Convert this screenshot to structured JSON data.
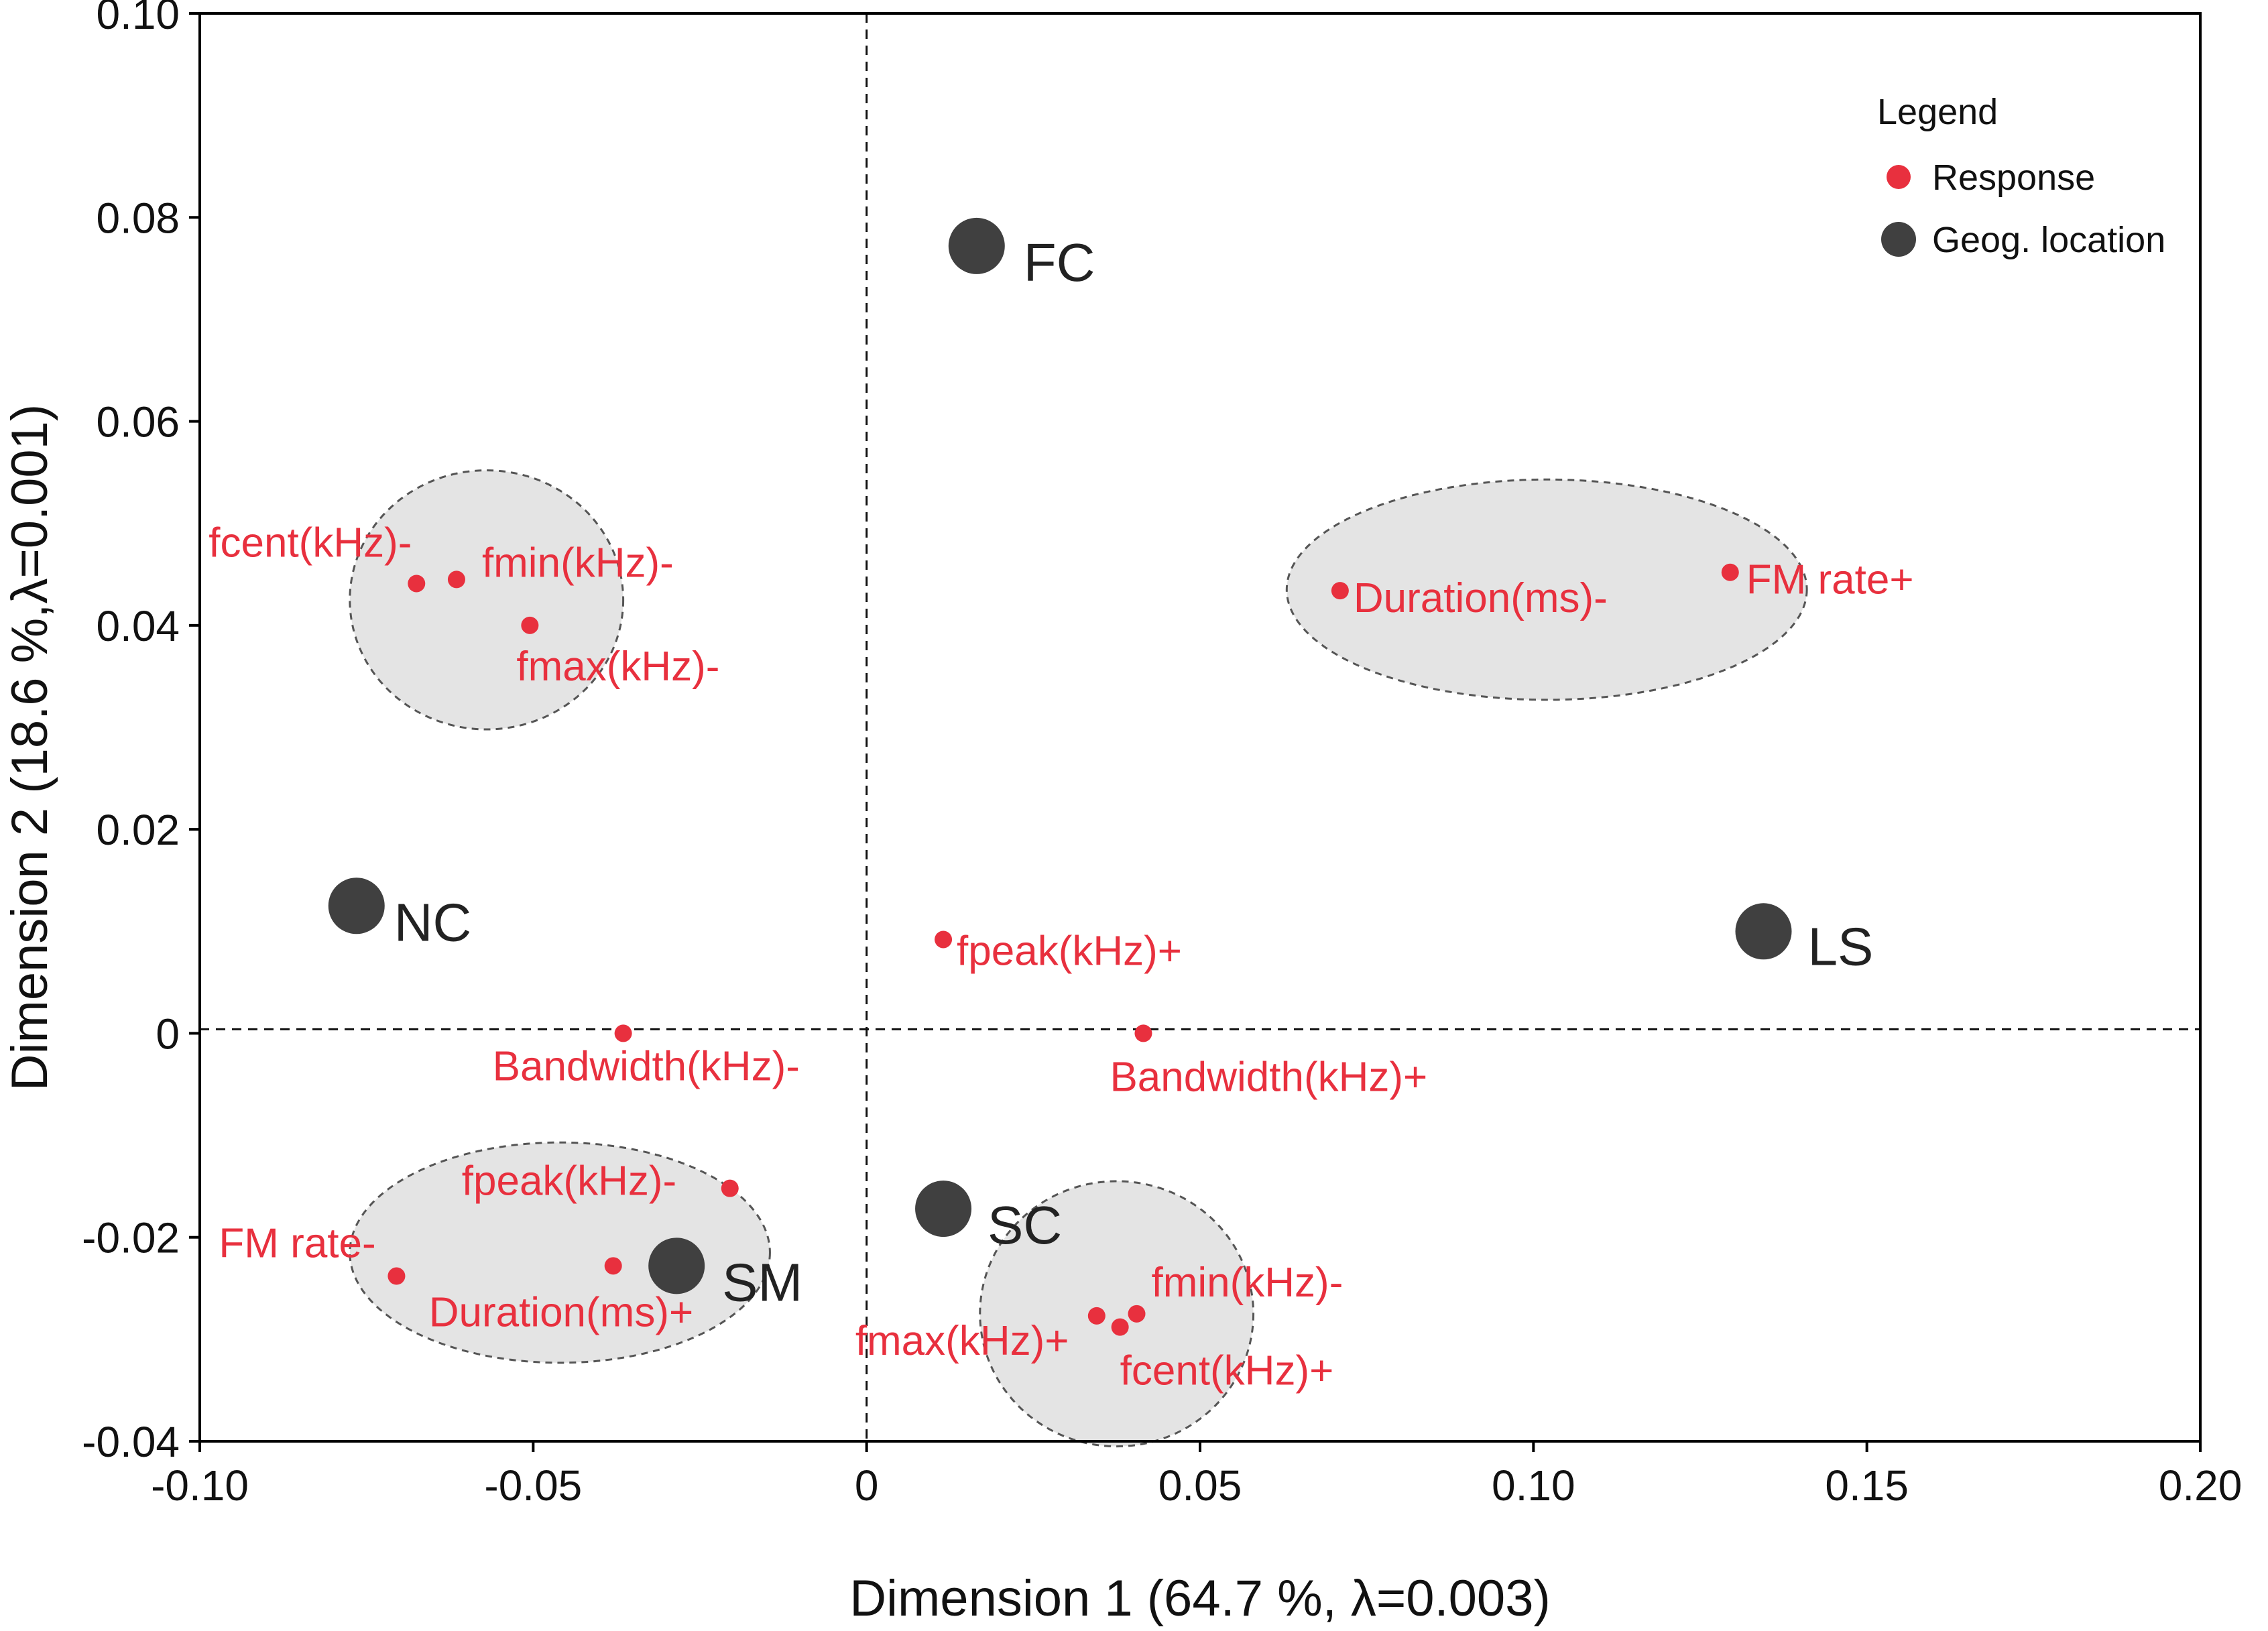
{
  "chart_data": {
    "type": "scatter",
    "title": "",
    "xlabel": "Dimension 1  (64.7 %, λ=0.003)",
    "ylabel": "Dimension 2  (18.6 %,λ=0.001)",
    "xlim": [
      -0.1,
      0.2
    ],
    "ylim": [
      -0.04,
      0.1
    ],
    "xticks": [
      {
        "value": -0.1,
        "label": "-0.10"
      },
      {
        "value": -0.05,
        "label": "-0.05"
      },
      {
        "value": 0,
        "label": "0"
      },
      {
        "value": 0.05,
        "label": "0.05"
      },
      {
        "value": 0.1,
        "label": "0.10"
      },
      {
        "value": 0.15,
        "label": "0.15"
      },
      {
        "value": 0.2,
        "label": "0.20"
      }
    ],
    "yticks": [
      {
        "value": 0.1,
        "label": "0.10"
      },
      {
        "value": 0.08,
        "label": "0.08"
      },
      {
        "value": 0.06,
        "label": "0.06"
      },
      {
        "value": 0.04,
        "label": "0.04"
      },
      {
        "value": 0.02,
        "label": "0.02"
      },
      {
        "value": 0,
        "label": "0"
      },
      {
        "value": -0.02,
        "label": "-0.02"
      },
      {
        "value": -0.04,
        "label": "-0.04"
      }
    ],
    "reference_lines": {
      "x": 0,
      "y": 0
    },
    "legend": {
      "title": "Legend",
      "position": "top-right",
      "entries": [
        {
          "label": "Response",
          "series": "Response"
        },
        {
          "label": "Geog. location",
          "series": "Geog. location"
        }
      ]
    },
    "series": [
      {
        "name": "Response",
        "color": "#e8303e",
        "points": [
          {
            "label": "fcent(kHz)-",
            "x": -0.0675,
            "y": 0.0441
          },
          {
            "label": "fmin(kHz)-",
            "x": -0.0615,
            "y": 0.0445
          },
          {
            "label": "fmax(kHz)-",
            "x": -0.0505,
            "y": 0.04
          },
          {
            "label": "Duration(ms)-",
            "x": 0.071,
            "y": 0.0434
          },
          {
            "label": "FM rate+",
            "x": 0.1295,
            "y": 0.0452
          },
          {
            "label": "fpeak(kHz)+",
            "x": 0.0115,
            "y": 0.0092
          },
          {
            "label": "Bandwidth(kHz)-",
            "x": -0.0365,
            "y": 0.0
          },
          {
            "label": "Bandwidth(kHz)+",
            "x": 0.0415,
            "y": 0.0
          },
          {
            "label": "fpeak(kHz)-",
            "x": -0.0205,
            "y": -0.0152
          },
          {
            "label": "FM rate-",
            "x": -0.0705,
            "y": -0.0238
          },
          {
            "label": "Duration(ms)+",
            "x": -0.038,
            "y": -0.0228
          },
          {
            "label": "fmin(kHz)-",
            "x": 0.0405,
            "y": -0.0275
          },
          {
            "label": "fmax(kHz)+",
            "x": 0.0345,
            "y": -0.0277
          },
          {
            "label": "fcent(kHz)+",
            "x": 0.038,
            "y": -0.0288
          }
        ]
      },
      {
        "name": "Geog. location",
        "color": "#404040",
        "points": [
          {
            "label": "FC",
            "x": 0.0165,
            "y": 0.0772
          },
          {
            "label": "NC",
            "x": -0.0765,
            "y": 0.0125
          },
          {
            "label": "LS",
            "x": 0.1345,
            "y": 0.01
          },
          {
            "label": "SC",
            "x": 0.0115,
            "y": -0.0172
          },
          {
            "label": "SM",
            "x": -0.0285,
            "y": -0.0228
          }
        ]
      }
    ],
    "clusters": [
      {
        "name": "cluster-upper-left",
        "cx": -0.057,
        "cy": 0.0425,
        "rx": 0.0205,
        "ry": 0.0127
      },
      {
        "name": "cluster-upper-right",
        "cx": 0.102,
        "cy": 0.0435,
        "rx": 0.039,
        "ry": 0.0108
      },
      {
        "name": "cluster-lower-left",
        "cx": -0.046,
        "cy": -0.0215,
        "rx": 0.0315,
        "ry": 0.0108
      },
      {
        "name": "cluster-lower-right",
        "cx": 0.0375,
        "cy": -0.0275,
        "rx": 0.0205,
        "ry": 0.013
      }
    ]
  }
}
